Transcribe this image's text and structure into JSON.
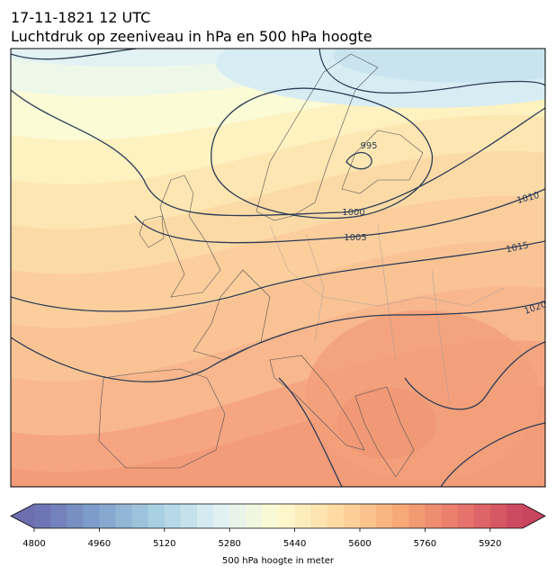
{
  "header": {
    "title": "17-11-1821 12 UTC",
    "subtitle": "Luchtdruk op zeeniveau in hPa en 500 hPa hoogte"
  },
  "map": {
    "isobar_labels": [
      995,
      1000,
      1005,
      1010,
      1015,
      1020
    ]
  },
  "colorbar": {
    "label": "500 hPa hoogte in meter",
    "lim": [
      4800,
      6000
    ],
    "ticks": [
      4800,
      4960,
      5120,
      5280,
      5440,
      5600,
      5760,
      5920
    ]
  }
}
